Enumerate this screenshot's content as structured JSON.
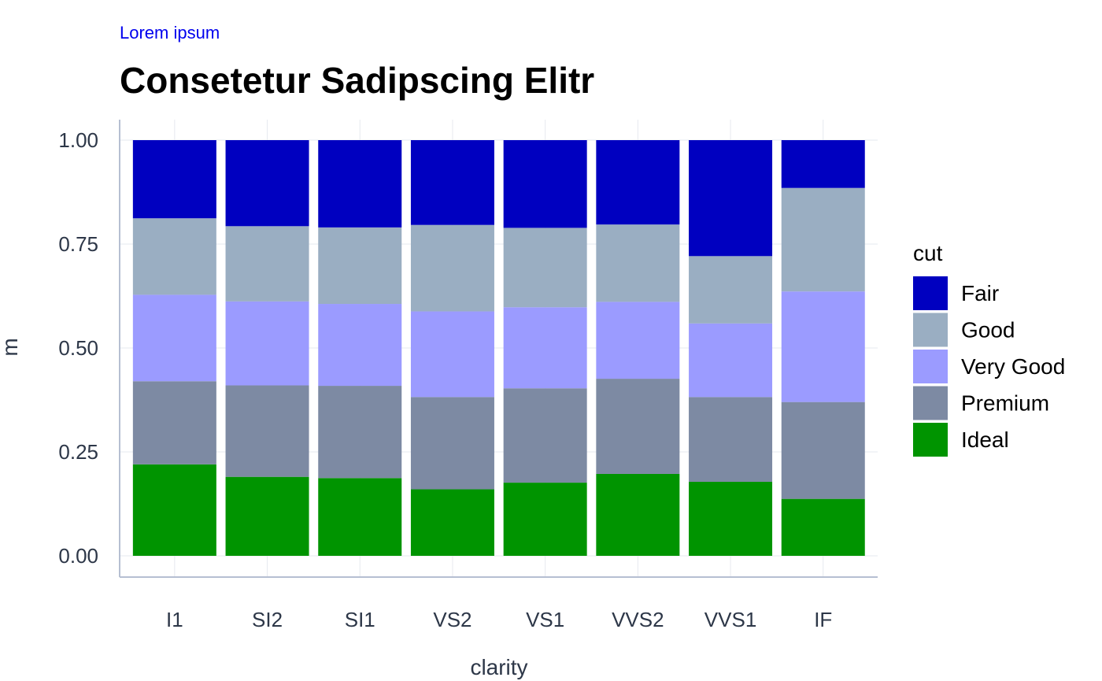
{
  "subtitle_text": "Lorem ipsum",
  "title_text": "Consetetur Sadipscing Elitr",
  "colors": {
    "subtitle": "#0000ee",
    "Fair": "#0000c0",
    "Good": "#9aaec2",
    "Very Good": "#9b9bff",
    "Premium": "#7d8aa3",
    "Ideal": "#009400",
    "grid": "#e6e9ef",
    "axis": "#b6bfd2"
  },
  "chart_data": {
    "type": "bar",
    "stacked": true,
    "title": "Consetetur Sadipscing Elitr",
    "subtitle": "Lorem ipsum",
    "xlabel": "clarity",
    "ylabel": "m",
    "ylim": [
      0,
      1
    ],
    "yticks": [
      "0.00",
      "0.25",
      "0.50",
      "0.75",
      "1.00"
    ],
    "grid": true,
    "legend": {
      "title": "cut",
      "position": "right",
      "entries": [
        "Fair",
        "Good",
        "Very Good",
        "Premium",
        "Ideal"
      ]
    },
    "categories": [
      "I1",
      "SI2",
      "SI1",
      "VS2",
      "VS1",
      "VVS2",
      "VVS1",
      "IF"
    ],
    "stack_order_bottom_to_top": [
      "Ideal",
      "Premium",
      "Very Good",
      "Good",
      "Fair"
    ],
    "series": [
      {
        "name": "Ideal",
        "values": [
          0.22,
          0.19,
          0.187,
          0.16,
          0.176,
          0.197,
          0.178,
          0.137
        ]
      },
      {
        "name": "Premium",
        "values": [
          0.2,
          0.22,
          0.222,
          0.222,
          0.227,
          0.229,
          0.204,
          0.233
        ]
      },
      {
        "name": "Very Good",
        "values": [
          0.208,
          0.202,
          0.197,
          0.206,
          0.195,
          0.185,
          0.177,
          0.266
        ]
      },
      {
        "name": "Good",
        "values": [
          0.184,
          0.181,
          0.184,
          0.208,
          0.191,
          0.186,
          0.162,
          0.249
        ]
      },
      {
        "name": "Fair",
        "values": [
          0.188,
          0.207,
          0.21,
          0.204,
          0.211,
          0.203,
          0.279,
          0.115
        ]
      }
    ]
  }
}
